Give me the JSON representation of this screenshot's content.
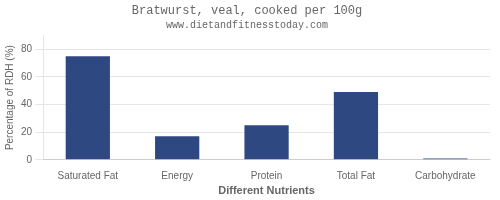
{
  "chart_data": {
    "type": "bar",
    "title": "Bratwurst, veal, cooked per 100g",
    "subtitle": "www.dietandfitnesstoday.com",
    "xlabel": "Different Nutrients",
    "ylabel": "Percentage of RDH (%)",
    "categories": [
      "Saturated Fat",
      "Energy",
      "Protein",
      "Total Fat",
      "Carbohydrate"
    ],
    "values": [
      75,
      17,
      25,
      49,
      1
    ],
    "color": "#2e4882",
    "ylim": [
      0,
      90
    ],
    "yticks": [
      0,
      20,
      40,
      60,
      80
    ],
    "grid": true
  }
}
